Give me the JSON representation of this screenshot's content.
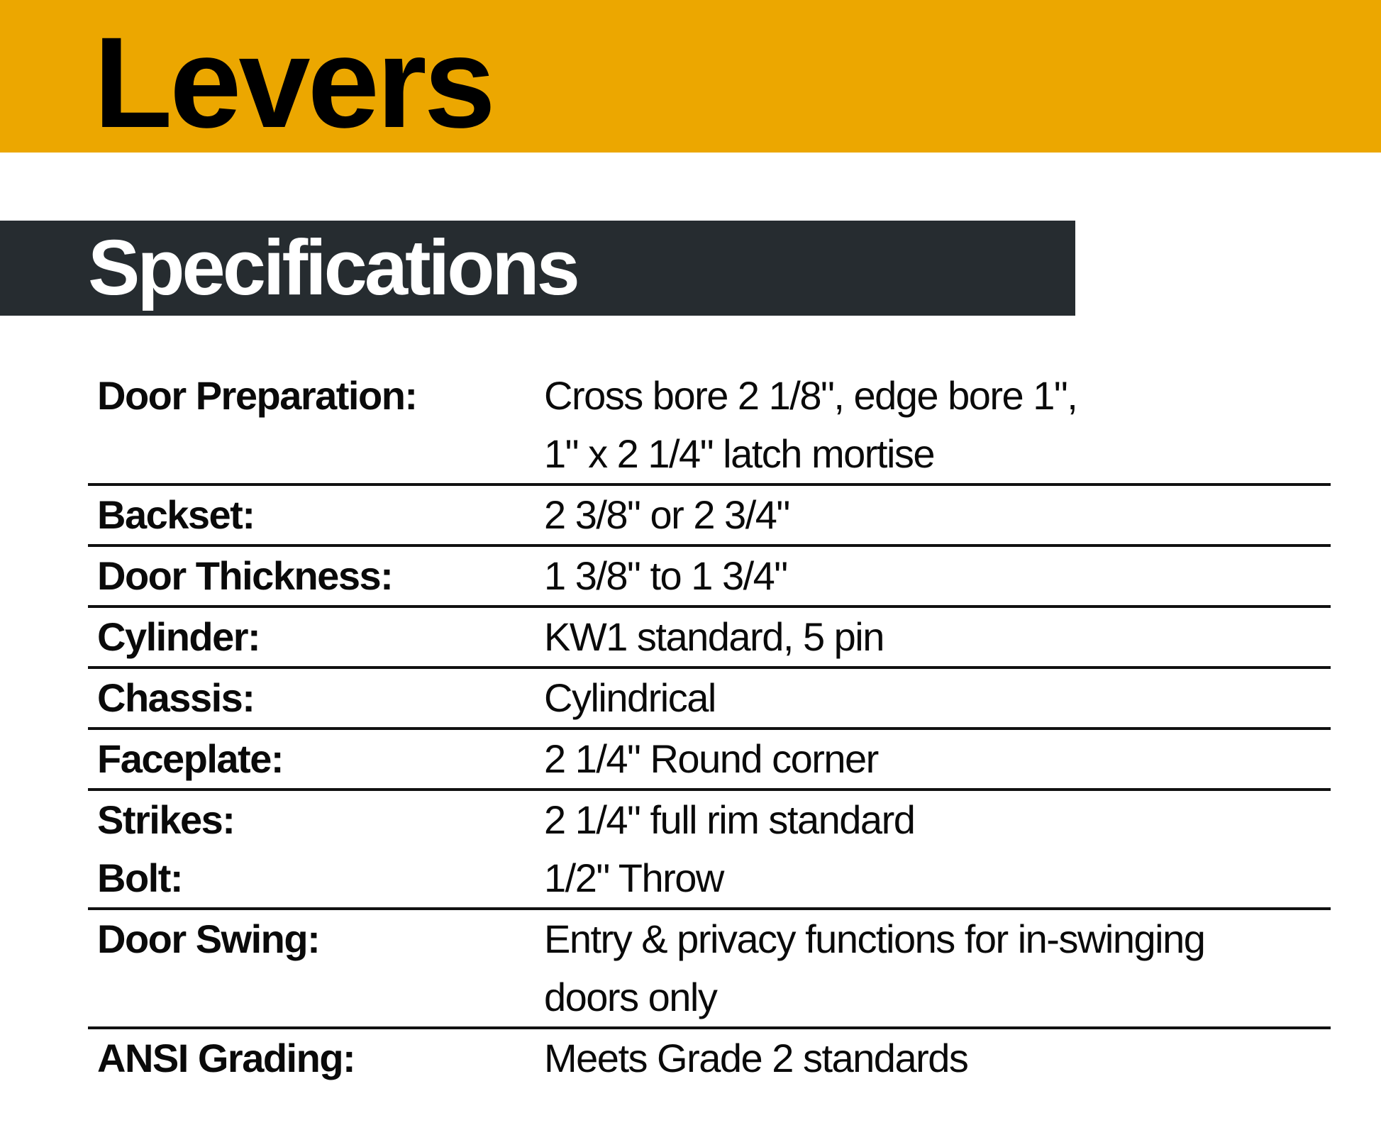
{
  "header": {
    "title": "Levers",
    "band_color": "#eca700"
  },
  "section": {
    "title": "Specifications",
    "band_color": "#262c30"
  },
  "specs": [
    {
      "label": "Door Preparation:",
      "lines": [
        "Cross bore 2 1/8\", edge bore 1\",",
        "1\" x 2 1/4\" latch mortise"
      ]
    },
    {
      "label": "Backset:",
      "lines": [
        "2 3/8\" or 2 3/4\""
      ]
    },
    {
      "label": "Door Thickness:",
      "lines": [
        "1 3/8\" to 1 3/4\""
      ]
    },
    {
      "label": "Cylinder:",
      "lines": [
        "KW1 standard, 5 pin"
      ]
    },
    {
      "label": "Chassis:",
      "lines": [
        "Cylindrical"
      ]
    },
    {
      "label": "Faceplate:",
      "lines": [
        "2 1/4\" Round corner"
      ]
    },
    {
      "label": "Strikes:",
      "lines": [
        "2 1/4\" full rim standard"
      ]
    },
    {
      "label": "Bolt:",
      "lines": [
        "1/2\" Throw"
      ]
    },
    {
      "label": "Door Swing:",
      "lines": [
        "Entry & privacy functions for in-swinging",
        "doors only"
      ]
    },
    {
      "label": "ANSI Grading:",
      "lines": [
        "Meets Grade 2 standards"
      ]
    }
  ]
}
